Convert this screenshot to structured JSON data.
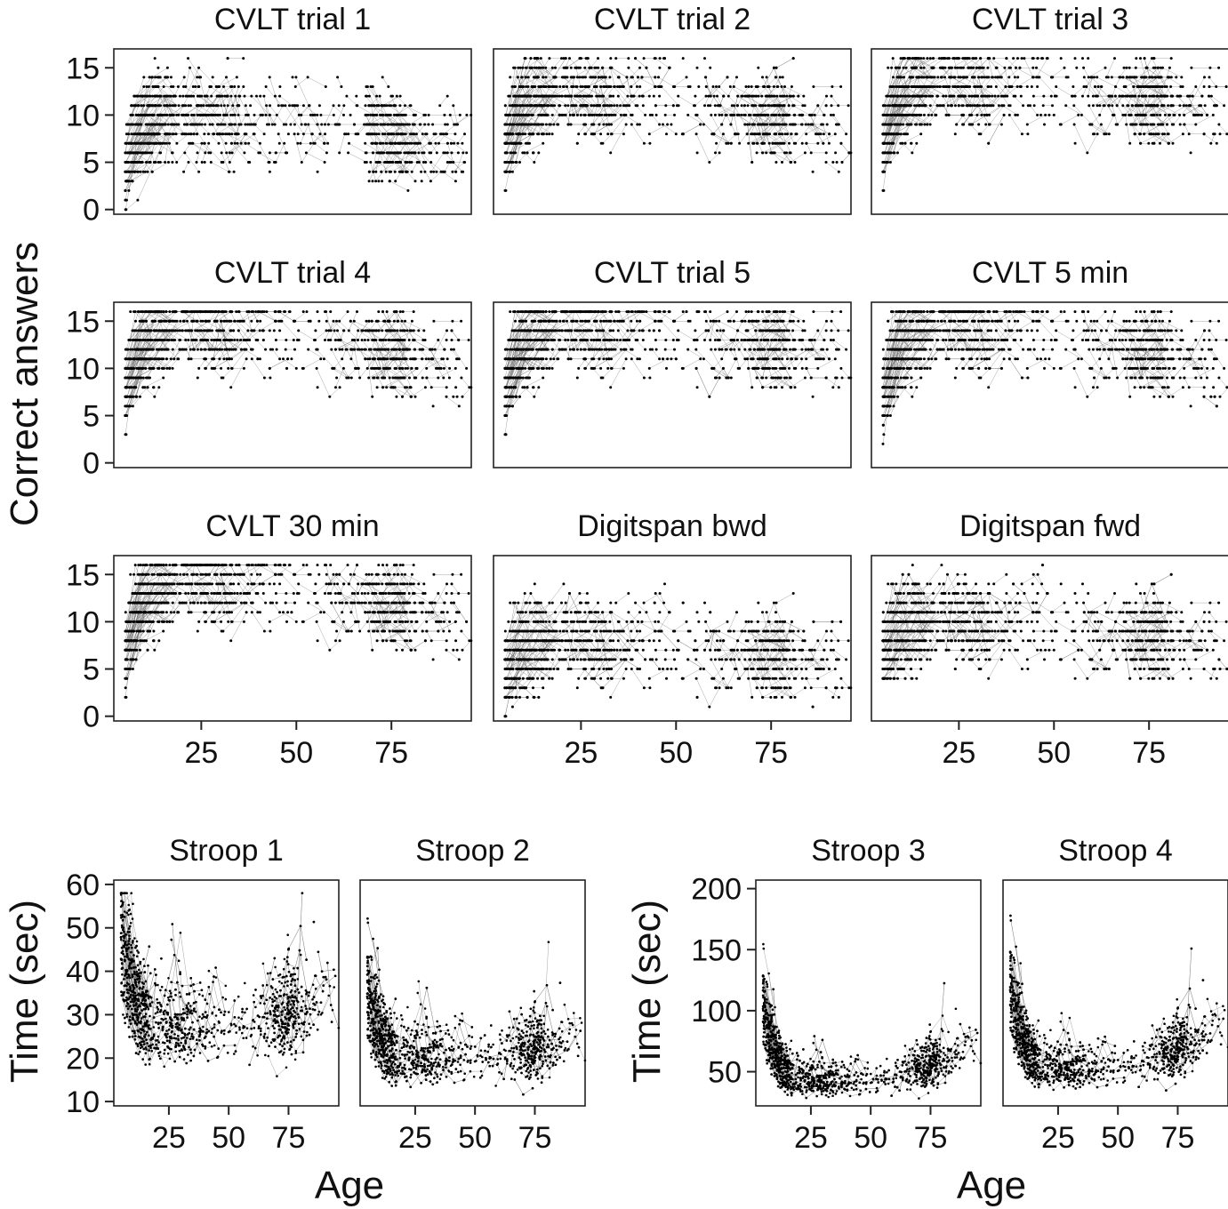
{
  "figure": {
    "top_ylabel": "Correct answers",
    "bottom_ylabel": "Time (sec)",
    "xlabel": "Age"
  },
  "chart_data": [
    {
      "type": "line",
      "title": "CVLT trial 1",
      "xlabel": "",
      "ylabel": "Correct answers",
      "xlim": [
        2,
        96
      ],
      "ylim": [
        -0.5,
        17
      ],
      "x_ticks": [
        25,
        50,
        75
      ],
      "y_ticks": [
        0,
        5,
        10,
        15
      ],
      "profile": {
        "peak": 10,
        "drop": 7,
        "ymin": 0,
        "ymax": 16,
        "base": 3
      }
    },
    {
      "type": "line",
      "title": "CVLT trial 2",
      "xlabel": "",
      "ylabel": "",
      "xlim": [
        2,
        96
      ],
      "ylim": [
        -0.5,
        17
      ],
      "x_ticks": [
        25,
        50,
        75
      ],
      "y_ticks": [
        0,
        5,
        10,
        15
      ],
      "profile": {
        "peak": 12,
        "drop": 9,
        "ymin": 0,
        "ymax": 16,
        "base": 4
      }
    },
    {
      "type": "line",
      "title": "CVLT trial 3",
      "xlabel": "",
      "ylabel": "",
      "xlim": [
        2,
        96
      ],
      "ylim": [
        -0.5,
        17
      ],
      "x_ticks": [
        25,
        50,
        75
      ],
      "y_ticks": [
        0,
        5,
        10,
        15
      ],
      "profile": {
        "peak": 13,
        "drop": 11,
        "ymin": 0,
        "ymax": 16,
        "base": 4
      }
    },
    {
      "type": "line",
      "title": "CVLT trial 4",
      "xlabel": "",
      "ylabel": "",
      "xlim": [
        2,
        96
      ],
      "ylim": [
        -0.5,
        17
      ],
      "x_ticks": [
        25,
        50,
        75
      ],
      "y_ticks": [
        0,
        5,
        10,
        15
      ],
      "profile": {
        "peak": 14,
        "drop": 11,
        "ymin": 0,
        "ymax": 16,
        "base": 5
      }
    },
    {
      "type": "line",
      "title": "CVLT trial 5",
      "xlabel": "",
      "ylabel": "",
      "xlim": [
        2,
        96
      ],
      "ylim": [
        -0.5,
        17
      ],
      "x_ticks": [
        25,
        50,
        75
      ],
      "y_ticks": [
        0,
        5,
        10,
        15
      ],
      "profile": {
        "peak": 14,
        "drop": 12,
        "ymin": 0,
        "ymax": 16,
        "base": 5
      }
    },
    {
      "type": "line",
      "title": "CVLT 5 min",
      "xlabel": "",
      "ylabel": "",
      "xlim": [
        2,
        96
      ],
      "ylim": [
        -0.5,
        17
      ],
      "x_ticks": [
        25,
        50,
        75
      ],
      "y_ticks": [
        0,
        5,
        10,
        15
      ],
      "profile": {
        "peak": 14,
        "drop": 11,
        "ymin": 0,
        "ymax": 16,
        "base": 4
      }
    },
    {
      "type": "line",
      "title": "CVLT 30 min",
      "xlabel": "",
      "ylabel": "",
      "xlim": [
        2,
        96
      ],
      "ylim": [
        -0.5,
        17
      ],
      "x_ticks": [
        25,
        50,
        75
      ],
      "y_ticks": [
        0,
        5,
        10,
        15
      ],
      "profile": {
        "peak": 14,
        "drop": 11,
        "ymin": 0,
        "ymax": 16,
        "base": 3
      }
    },
    {
      "type": "line",
      "title": "Digitspan bwd",
      "xlabel": "",
      "ylabel": "",
      "xlim": [
        2,
        96
      ],
      "ylim": [
        -0.5,
        17
      ],
      "x_ticks": [
        25,
        50,
        75
      ],
      "y_ticks": [
        0,
        5,
        10,
        15
      ],
      "profile": {
        "peak": 8,
        "drop": 6,
        "ymin": 0,
        "ymax": 14,
        "base": 3
      }
    },
    {
      "type": "line",
      "title": "Digitspan fwd",
      "xlabel": "",
      "ylabel": "",
      "xlim": [
        2,
        96
      ],
      "ylim": [
        -0.5,
        17
      ],
      "x_ticks": [
        25,
        50,
        75
      ],
      "y_ticks": [
        0,
        5,
        10,
        15
      ],
      "profile": {
        "peak": 10,
        "drop": 8,
        "ymin": 4,
        "ymax": 16,
        "base": 5
      }
    },
    {
      "type": "line",
      "title": "Stroop 1",
      "xlabel": "Age",
      "ylabel": "Time (sec)",
      "xlim": [
        2,
        96
      ],
      "ylim": [
        9,
        61
      ],
      "x_ticks": [
        25,
        50,
        75
      ],
      "y_ticks": [
        10,
        20,
        30,
        40,
        50,
        60
      ],
      "profile": {
        "start": 46,
        "floor": 27,
        "end": 33,
        "ymin": 15,
        "ymax": 58
      }
    },
    {
      "type": "line",
      "title": "Stroop 2",
      "xlabel": "Age",
      "ylabel": "",
      "xlim": [
        2,
        96
      ],
      "ylim": [
        9,
        61
      ],
      "x_ticks": [
        25,
        50,
        75
      ],
      "y_ticks": [
        10,
        20,
        30,
        40,
        50,
        60
      ],
      "profile": {
        "start": 33,
        "floor": 20,
        "end": 24,
        "ymin": 11,
        "ymax": 54
      }
    },
    {
      "type": "line",
      "title": "Stroop 3",
      "xlabel": "Age",
      "ylabel": "Time (sec)",
      "xlim": [
        2,
        96
      ],
      "ylim": [
        22,
        207
      ],
      "x_ticks": [
        25,
        50,
        75
      ],
      "y_ticks": [
        50,
        100,
        150,
        200
      ],
      "profile": {
        "start": 95,
        "floor": 42,
        "end": 65,
        "ymin": 28,
        "ymax": 155
      }
    },
    {
      "type": "line",
      "title": "Stroop 4",
      "xlabel": "Age",
      "ylabel": "",
      "xlim": [
        2,
        96
      ],
      "ylim": [
        22,
        207
      ],
      "x_ticks": [
        25,
        50,
        75
      ],
      "y_ticks": [
        50,
        100,
        150,
        200
      ],
      "profile": {
        "start": 110,
        "floor": 52,
        "end": 80,
        "ymin": 33,
        "ymax": 200
      }
    }
  ]
}
